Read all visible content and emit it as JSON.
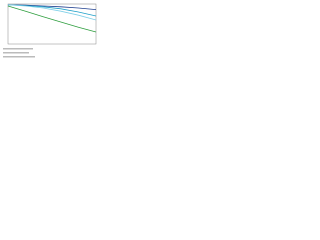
{
  "chart_data": {
    "type": "line",
    "x": [
      0,
      20,
      40,
      60,
      80,
      100
    ],
    "xlim": [
      0,
      100
    ],
    "ylim": [
      0,
      100
    ],
    "series": [
      {
        "color": "#2e9e3e",
        "values": [
          95,
          82,
          68,
          55,
          42,
          30
        ]
      },
      {
        "color": "#1f3f8f",
        "values": [
          98,
          97,
          95,
          93,
          90,
          86
        ]
      },
      {
        "color": "#1fa0c8",
        "values": [
          98,
          96,
          93,
          88,
          80,
          70
        ]
      },
      {
        "color": "#7fd0e8",
        "values": [
          98,
          95,
          90,
          82,
          72,
          60
        ]
      }
    ]
  }
}
